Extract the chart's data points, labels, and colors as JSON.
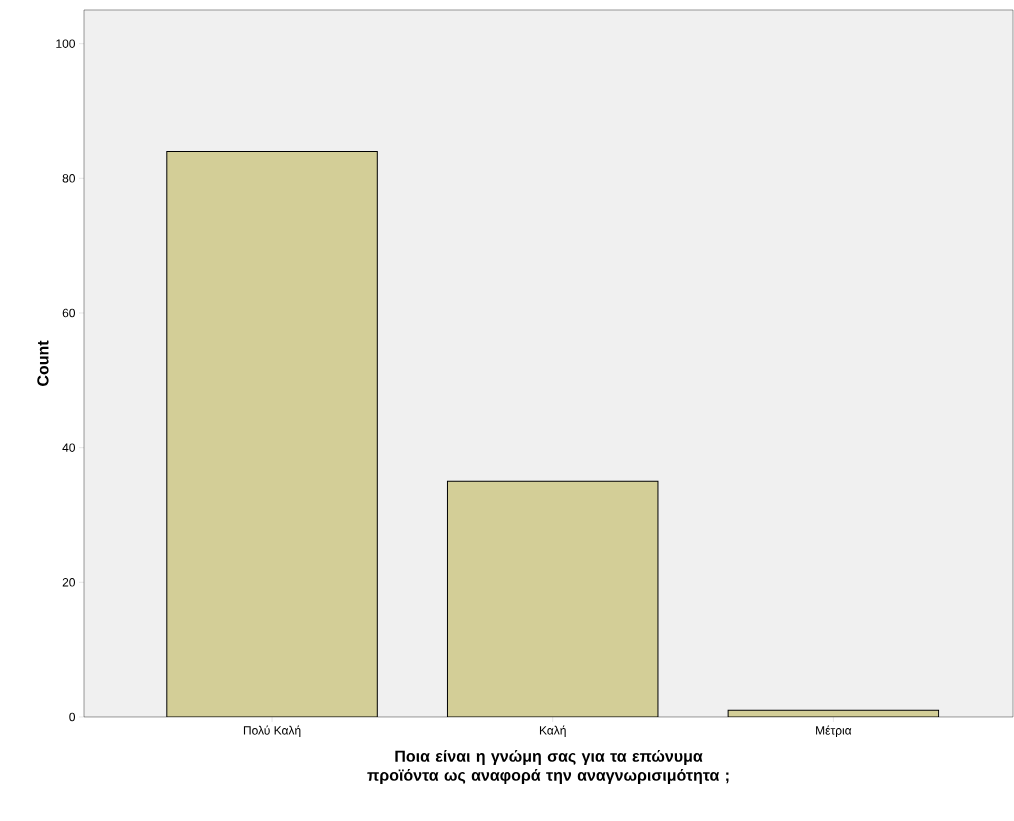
{
  "chart_data": {
    "type": "bar",
    "categories": [
      "Πολύ Καλή",
      "Καλή",
      "Μέτρια"
    ],
    "values": [
      84,
      35,
      1
    ],
    "color": "#d3ce97",
    "xlabel": "Ποια είναι η γνώμη σας για τα επώνυμα προϊόντα ως αναφορά την αναγνωρισιμότητα ;",
    "ylabel": "Count",
    "ylim": [
      0,
      105
    ],
    "yticks": [
      0,
      20,
      40,
      60,
      80,
      100
    ]
  }
}
